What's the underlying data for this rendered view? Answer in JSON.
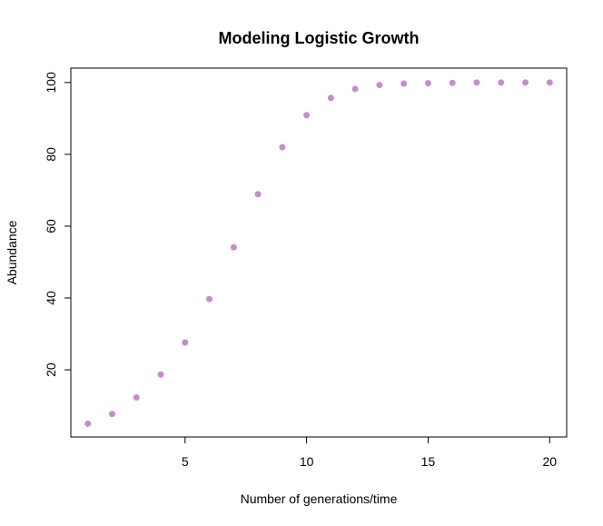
{
  "chart_data": {
    "type": "scatter",
    "title": "Modeling Logistic Growth",
    "xlabel": "Number of generations/time",
    "ylabel": "Abundance",
    "xlim": [
      0.3,
      20.7
    ],
    "ylim": [
      1.3,
      104.0
    ],
    "x_ticks": [
      5,
      10,
      15,
      20
    ],
    "y_ticks": [
      20,
      40,
      60,
      80,
      100
    ],
    "grid": false,
    "legend": "none",
    "point_color": "#c68ccb",
    "series": [
      {
        "x": [
          1,
          2,
          3,
          4,
          5,
          6,
          7,
          8,
          9,
          10,
          11,
          12,
          13,
          14,
          15,
          16,
          17,
          18,
          19,
          20
        ],
        "y": [
          5.0,
          7.7,
          12.3,
          18.7,
          27.6,
          39.7,
          54.1,
          68.9,
          82.0,
          90.9,
          95.7,
          98.2,
          99.3,
          99.7,
          99.8,
          99.9,
          100.0,
          100.0,
          100.0,
          100.0
        ]
      }
    ]
  }
}
